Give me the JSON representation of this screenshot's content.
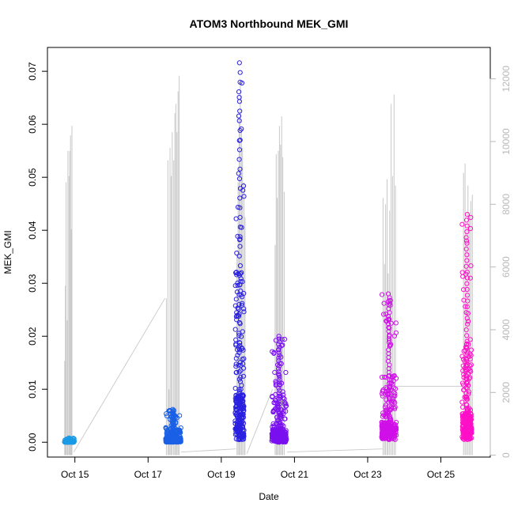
{
  "chart_data": {
    "type": "scatter",
    "title": "ATOM3 Northbound MEK_GMI",
    "xlabel": "Date",
    "ylabel": "MEK_GMI",
    "x_axis": {
      "unit": "days (October)",
      "range": [
        14.25,
        26.35
      ],
      "ticks": [
        {
          "value": 15,
          "label": "Oct 15"
        },
        {
          "value": 17,
          "label": "Oct 17"
        },
        {
          "value": 19,
          "label": "Oct 19"
        },
        {
          "value": 21,
          "label": "Oct 21"
        },
        {
          "value": 23,
          "label": "Oct 23"
        },
        {
          "value": 25,
          "label": "Oct 25"
        }
      ]
    },
    "y_axis": {
      "range": [
        -0.0028,
        0.0745
      ],
      "ticks": [
        0.0,
        0.01,
        0.02,
        0.03,
        0.04,
        0.05,
        0.06,
        0.07
      ],
      "tick_labels": [
        "0.00",
        "0.01",
        "0.02",
        "0.03",
        "0.04",
        "0.05",
        "0.06",
        "0.07"
      ]
    },
    "y2_axis": {
      "color": "#b8b8b8",
      "range": [
        -60,
        13000
      ],
      "ticks": [
        0,
        2000,
        4000,
        6000,
        8000,
        10000,
        12000
      ],
      "tick_labels": [
        "0",
        "2000",
        "4000",
        "6000",
        "8000",
        "10000",
        "12000"
      ]
    },
    "series": [
      {
        "kind": "line",
        "axis": "right",
        "color": "#c8c8c8",
        "spikes": [
          [
            14.72,
            3000
          ],
          [
            14.74,
            5400
          ],
          [
            14.76,
            8700
          ],
          [
            14.79,
            4300
          ],
          [
            14.81,
            9700
          ],
          [
            14.84,
            8900
          ],
          [
            14.86,
            9700
          ],
          [
            14.88,
            10200
          ],
          [
            14.9,
            7200
          ],
          [
            14.92,
            10500
          ],
          [
            17.5,
            5000
          ],
          [
            17.54,
            9400
          ],
          [
            17.57,
            2100
          ],
          [
            17.6,
            9800
          ],
          [
            17.63,
            8900
          ],
          [
            17.66,
            10300
          ],
          [
            17.7,
            9400
          ],
          [
            17.73,
            10900
          ],
          [
            17.76,
            11200
          ],
          [
            17.79,
            10300
          ],
          [
            17.82,
            11600
          ],
          [
            17.85,
            12100
          ],
          [
            19.43,
            6400
          ],
          [
            19.46,
            8700
          ],
          [
            19.49,
            10700
          ],
          [
            19.52,
            11900
          ],
          [
            19.55,
            10300
          ],
          [
            19.58,
            9800
          ],
          [
            19.62,
            8700
          ],
          [
            19.65,
            7600
          ],
          [
            20.47,
            6700
          ],
          [
            20.5,
            9600
          ],
          [
            20.53,
            8200
          ],
          [
            20.56,
            9700
          ],
          [
            20.59,
            10500
          ],
          [
            20.62,
            9900
          ],
          [
            20.65,
            10800
          ],
          [
            20.68,
            9500
          ],
          [
            20.72,
            8400
          ],
          [
            23.42,
            8200
          ],
          [
            23.46,
            6100
          ],
          [
            23.49,
            8000
          ],
          [
            23.53,
            8800
          ],
          [
            23.56,
            5800
          ],
          [
            23.6,
            7800
          ],
          [
            23.64,
            11200
          ],
          [
            23.68,
            8900
          ],
          [
            23.72,
            11500
          ],
          [
            23.76,
            8600
          ],
          [
            25.62,
            9000
          ],
          [
            25.66,
            9300
          ],
          [
            25.7,
            7200
          ],
          [
            25.74,
            8600
          ],
          [
            25.78,
            7700
          ],
          [
            25.82,
            8100
          ],
          [
            25.86,
            8300
          ]
        ],
        "connectors": [
          [
            [
              14.97,
              100
            ],
            [
              17.46,
              5000
            ]
          ],
          [
            [
              17.9,
              100
            ],
            [
              19.4,
              200
            ]
          ],
          [
            [
              19.7,
              50
            ],
            [
              20.4,
              2100
            ]
          ],
          [
            [
              20.8,
              100
            ],
            [
              23.4,
              200
            ]
          ],
          [
            [
              23.8,
              2200
            ],
            [
              25.6,
              2200
            ]
          ]
        ]
      },
      {
        "kind": "points",
        "axis": "left",
        "clusters": [
          {
            "x_start": 14.72,
            "x_end": 14.98,
            "y_base": 0.0,
            "y_max": 0.0008,
            "color": "#1a9be6"
          },
          {
            "x_start": 17.48,
            "x_end": 17.9,
            "y_base": 0.0,
            "y_max": 0.0062,
            "color": "#1a60e6"
          },
          {
            "x_start": 19.38,
            "x_end": 19.62,
            "y_base": 0.0005,
            "y_max": 0.0716,
            "color": "#2a20e0"
          },
          {
            "x_start": 20.38,
            "x_end": 20.78,
            "y_base": 0.0,
            "y_max": 0.02,
            "color": "#7a10f0"
          },
          {
            "x_start": 23.38,
            "x_end": 23.78,
            "y_base": 0.0005,
            "y_max": 0.028,
            "color": "#d010e8"
          },
          {
            "x_start": 25.58,
            "x_end": 25.84,
            "y_base": 0.0005,
            "y_max": 0.043,
            "color": "#ff10c8"
          }
        ]
      }
    ],
    "grid": false,
    "legend": "none"
  }
}
